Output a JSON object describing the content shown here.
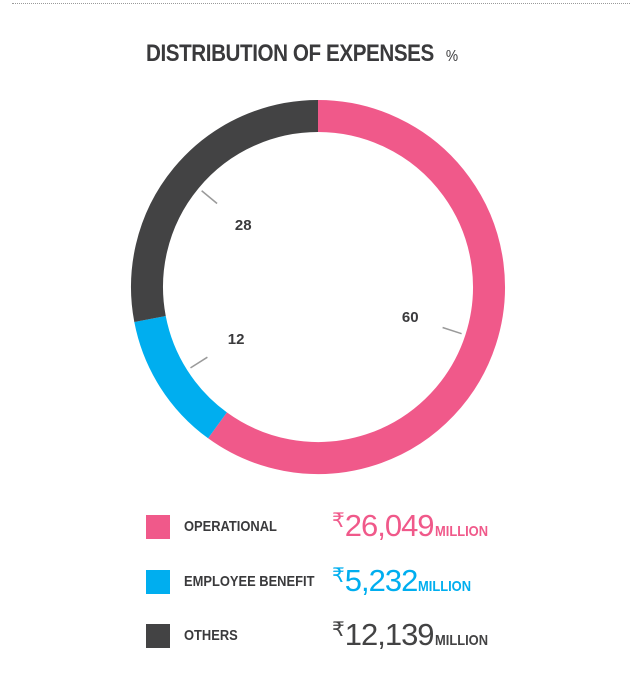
{
  "chart_data": {
    "type": "pie",
    "title": "DISTRIBUTION OF EXPENSES",
    "unit": "%",
    "categories": [
      "OPERATIONAL",
      "EMPLOYEE BENEFIT",
      "OTHERS"
    ],
    "values": [
      60,
      12,
      28
    ],
    "colors": [
      "#f0598a",
      "#00aeef",
      "#434344"
    ],
    "amounts": [
      {
        "currency": "₹",
        "value": "26,049",
        "suffix": "MILLION"
      },
      {
        "currency": "₹",
        "value": "5,232",
        "suffix": "MILLION"
      },
      {
        "currency": "₹",
        "value": "12,139",
        "suffix": "MILLION"
      }
    ]
  }
}
